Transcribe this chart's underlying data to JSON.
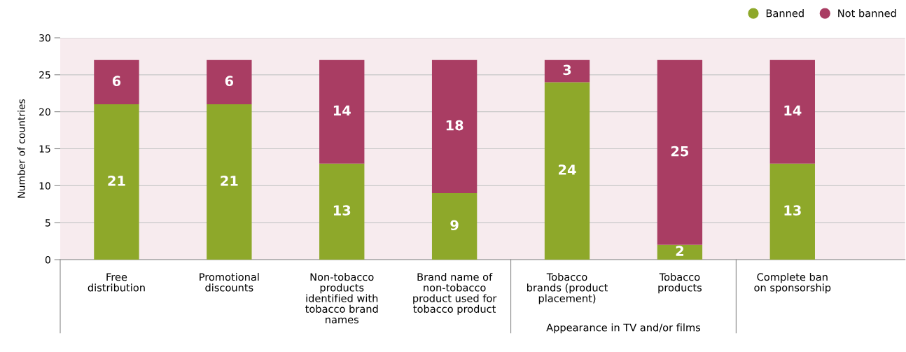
{
  "chart_data": {
    "type": "bar",
    "stacked": true,
    "categories": [
      "Free\ndistribution",
      "Promotional\ndiscounts",
      "Non-tobacco\nproducts\nidentified with\ntobacco brand\nnames",
      "Brand name of\nnon-tobacco\nproduct used for\ntobacco product",
      "Tobacco\nbrands (product\nplacement)",
      "Tobacco\nproducts",
      "Complete ban\non sponsorship"
    ],
    "series": [
      {
        "name": "Banned",
        "color": "#8ea82a",
        "values": [
          21,
          21,
          13,
          9,
          24,
          2,
          13
        ]
      },
      {
        "name": "Not banned",
        "color": "#a93d63",
        "values": [
          6,
          6,
          14,
          18,
          3,
          25,
          14
        ]
      }
    ],
    "ylabel": "Number of countries",
    "ylim": [
      0,
      30
    ],
    "yticks": [
      0,
      5,
      10,
      15,
      20,
      25,
      30
    ],
    "grid": "y",
    "legend": "top right",
    "data_labels": true,
    "annotations": [
      "Appearance in TV and/or films"
    ]
  }
}
